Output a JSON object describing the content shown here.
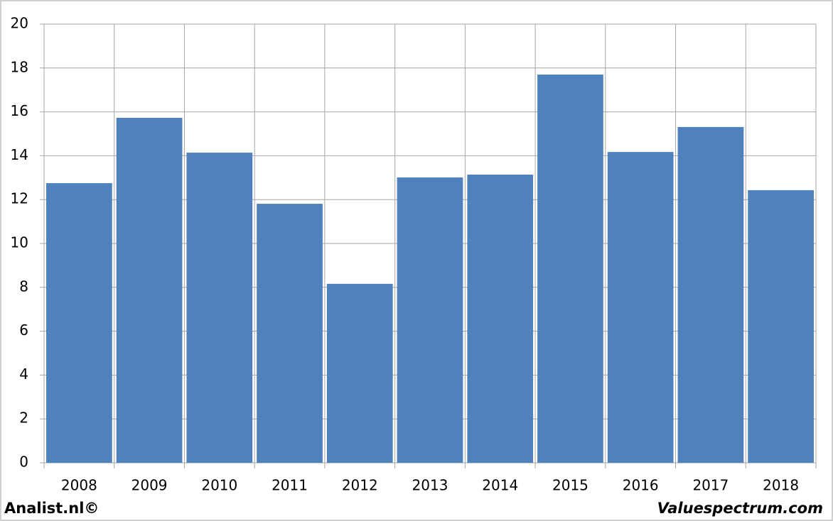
{
  "chart_data": {
    "type": "bar",
    "categories": [
      "2008",
      "2009",
      "2010",
      "2011",
      "2012",
      "2013",
      "2014",
      "2015",
      "2016",
      "2017",
      "2018"
    ],
    "values": [
      12.75,
      15.73,
      14.14,
      11.81,
      8.16,
      13.01,
      13.14,
      17.7,
      14.17,
      15.31,
      12.43
    ],
    "color": "#4f81bd",
    "ylim": [
      0,
      20
    ],
    "yticks": [
      0,
      2,
      4,
      6,
      8,
      10,
      12,
      14,
      16,
      18,
      20
    ],
    "grid": true,
    "annotations": [
      "Analist.nl©",
      "Valuespectrum.com"
    ]
  }
}
